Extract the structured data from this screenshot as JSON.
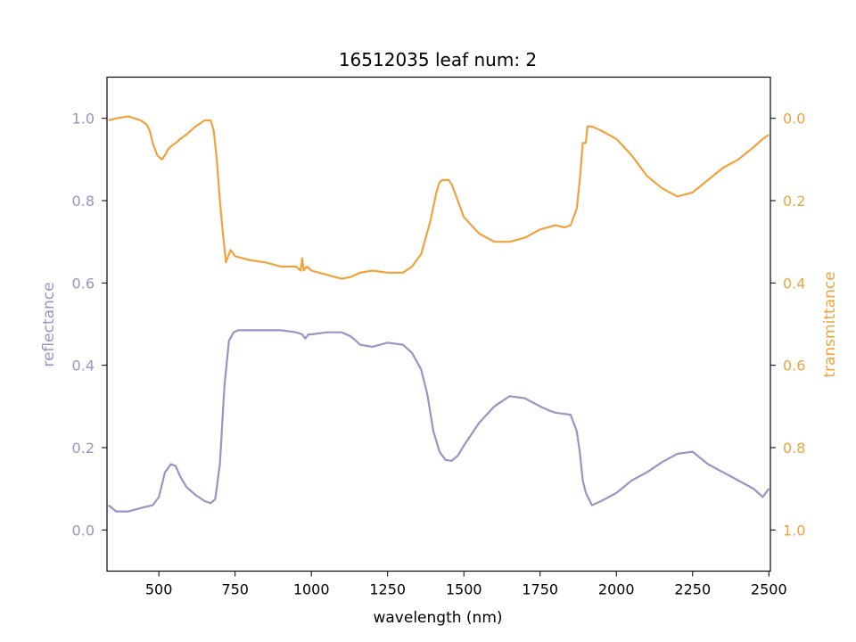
{
  "chart_data": {
    "type": "line",
    "title": "16512035 leaf num: 2",
    "xlabel": "wavelength (nm)",
    "ylabel": "reflectance",
    "y2label": "transmittance",
    "xlim": [
      330,
      2505
    ],
    "ylim": [
      -0.1,
      1.1
    ],
    "y2lim": [
      1.1,
      -0.1
    ],
    "y2_inverted": true,
    "x_ticks": [
      "500",
      "750",
      "1000",
      "1250",
      "1500",
      "1750",
      "2000",
      "2250",
      "2500"
    ],
    "y_ticks": [
      "0.0",
      "0.2",
      "0.4",
      "0.6",
      "0.8",
      "1.0"
    ],
    "y2_ticks": [
      "0.0",
      "0.2",
      "0.4",
      "0.6",
      "0.8",
      "1.0"
    ],
    "grid": false,
    "colors": {
      "reflectance": "#9894c5",
      "transmittance": "#f2a23c"
    },
    "series": [
      {
        "name": "reflectance",
        "axis": "left",
        "x": [
          335,
          360,
          400,
          450,
          480,
          500,
          520,
          540,
          555,
          570,
          590,
          620,
          650,
          670,
          685,
          700,
          715,
          730,
          745,
          760,
          800,
          850,
          900,
          950,
          970,
          980,
          990,
          1000,
          1050,
          1100,
          1130,
          1160,
          1200,
          1250,
          1300,
          1330,
          1360,
          1380,
          1400,
          1420,
          1440,
          1460,
          1480,
          1500,
          1550,
          1600,
          1650,
          1700,
          1750,
          1780,
          1800,
          1850,
          1870,
          1880,
          1890,
          1900,
          1910,
          1920,
          1950,
          2000,
          2050,
          2100,
          2150,
          2200,
          2250,
          2300,
          2350,
          2400,
          2450,
          2480,
          2500
        ],
        "values": [
          0.06,
          0.045,
          0.045,
          0.055,
          0.06,
          0.08,
          0.14,
          0.16,
          0.155,
          0.13,
          0.105,
          0.085,
          0.07,
          0.065,
          0.075,
          0.16,
          0.35,
          0.46,
          0.48,
          0.485,
          0.485,
          0.485,
          0.485,
          0.48,
          0.475,
          0.465,
          0.475,
          0.475,
          0.48,
          0.48,
          0.47,
          0.45,
          0.445,
          0.455,
          0.45,
          0.43,
          0.39,
          0.33,
          0.24,
          0.19,
          0.17,
          0.168,
          0.18,
          0.205,
          0.26,
          0.3,
          0.325,
          0.32,
          0.3,
          0.29,
          0.285,
          0.28,
          0.24,
          0.19,
          0.12,
          0.09,
          0.075,
          0.06,
          0.07,
          0.09,
          0.12,
          0.14,
          0.165,
          0.185,
          0.19,
          0.16,
          0.14,
          0.12,
          0.1,
          0.08,
          0.1
        ]
      },
      {
        "name": "transmittance",
        "axis": "right",
        "x": [
          335,
          360,
          400,
          440,
          460,
          470,
          480,
          495,
          510,
          520,
          530,
          545,
          555,
          570,
          590,
          620,
          650,
          670,
          680,
          690,
          700,
          710,
          720,
          735,
          750,
          800,
          850,
          900,
          950,
          965,
          970,
          975,
          985,
          1000,
          1050,
          1100,
          1130,
          1160,
          1200,
          1250,
          1300,
          1330,
          1360,
          1390,
          1410,
          1420,
          1430,
          1450,
          1460,
          1480,
          1500,
          1550,
          1600,
          1650,
          1700,
          1750,
          1800,
          1830,
          1850,
          1870,
          1880,
          1890,
          1900,
          1905,
          1920,
          1950,
          2000,
          2050,
          2100,
          2150,
          2200,
          2250,
          2300,
          2350,
          2400,
          2450,
          2480,
          2500
        ],
        "values": [
          0.005,
          0.0,
          -0.005,
          0.005,
          0.015,
          0.03,
          0.06,
          0.09,
          0.1,
          0.09,
          0.075,
          0.065,
          0.06,
          0.05,
          0.04,
          0.02,
          0.005,
          0.005,
          0.03,
          0.1,
          0.2,
          0.28,
          0.35,
          0.32,
          0.335,
          0.345,
          0.35,
          0.36,
          0.36,
          0.37,
          0.34,
          0.37,
          0.36,
          0.37,
          0.38,
          0.39,
          0.385,
          0.375,
          0.37,
          0.375,
          0.375,
          0.36,
          0.33,
          0.25,
          0.18,
          0.155,
          0.15,
          0.15,
          0.16,
          0.2,
          0.24,
          0.28,
          0.3,
          0.3,
          0.29,
          0.27,
          0.26,
          0.265,
          0.26,
          0.22,
          0.15,
          0.06,
          0.06,
          0.02,
          0.02,
          0.03,
          0.05,
          0.09,
          0.14,
          0.17,
          0.19,
          0.18,
          0.15,
          0.12,
          0.1,
          0.07,
          0.05,
          0.04
        ]
      }
    ]
  }
}
